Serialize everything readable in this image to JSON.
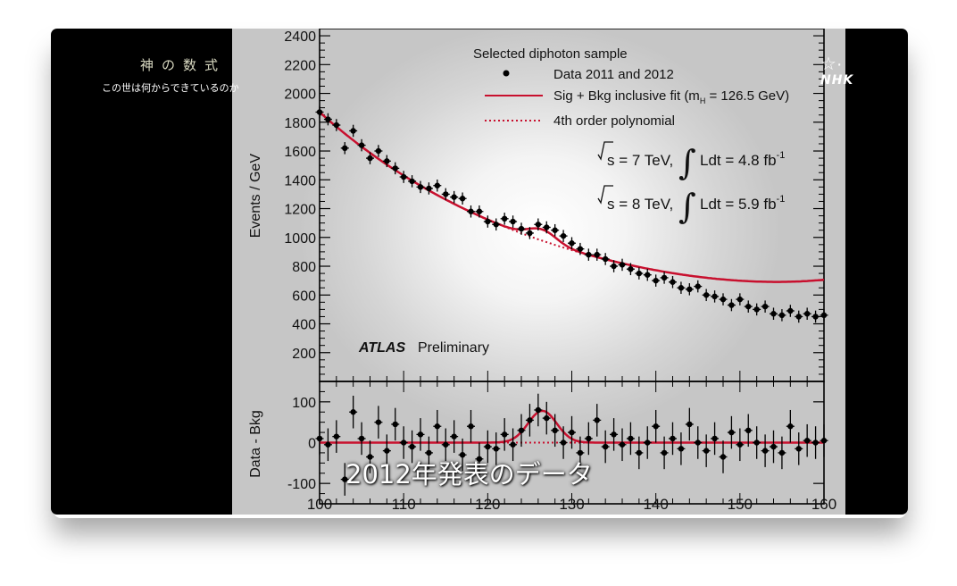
{
  "overlay": {
    "program_title": "神の数式",
    "program_subtitle": "この世は何からできているのか",
    "broadcaster": "NHK",
    "subtitle": "2012年発表のデータ"
  },
  "chart_data": [
    {
      "type": "scatter",
      "ylabel": "Events / GeV",
      "ylim": [
        0,
        2450
      ],
      "xlim": [
        100,
        160
      ],
      "yticks": [
        200,
        400,
        600,
        800,
        1000,
        1200,
        1400,
        1600,
        1800,
        2000,
        2200,
        2400
      ],
      "legend": {
        "header": "Selected diphoton sample",
        "entries": [
          "Data 2011 and 2012",
          "Sig + Bkg inclusive fit (m",
          "4th order polynomial"
        ],
        "fit_mass_subscript": "H",
        "fit_mass_value": " = 126.5 GeV)",
        "placement": "top-right"
      },
      "annotations": {
        "line1_energy": "s = 7 TeV,",
        "line1_lumi": "Ldt = 4.8 fb",
        "line2_energy": "s = 8 TeV,",
        "line2_lumi": "Ldt = 5.9 fb",
        "lumi_exponent": "-1",
        "experiment": "ATLAS",
        "status": "Preliminary"
      },
      "series": [
        {
          "name": "Data 2011 and 2012",
          "x": [
            100,
            101,
            102,
            103,
            104,
            105,
            106,
            107,
            108,
            109,
            110,
            111,
            112,
            113,
            114,
            115,
            116,
            117,
            118,
            119,
            120,
            121,
            122,
            123,
            124,
            125,
            126,
            127,
            128,
            129,
            130,
            131,
            132,
            133,
            134,
            135,
            136,
            137,
            138,
            139,
            140,
            141,
            142,
            143,
            144,
            145,
            146,
            147,
            148,
            149,
            150,
            151,
            152,
            153,
            154,
            155,
            156,
            157,
            158,
            159,
            160
          ],
          "y": [
            1870,
            1820,
            1780,
            1620,
            1740,
            1640,
            1550,
            1600,
            1530,
            1480,
            1420,
            1390,
            1350,
            1340,
            1360,
            1300,
            1280,
            1270,
            1180,
            1180,
            1110,
            1090,
            1130,
            1110,
            1060,
            1030,
            1090,
            1070,
            1050,
            1010,
            960,
            920,
            880,
            880,
            850,
            800,
            810,
            780,
            750,
            740,
            700,
            720,
            690,
            650,
            640,
            660,
            600,
            590,
            570,
            530,
            570,
            520,
            500,
            520,
            470,
            460,
            490,
            450,
            470,
            450,
            460
          ],
          "yerr": 42
        }
      ],
      "fit_curves": [
        {
          "name": "Sig + Bkg inclusive fit",
          "style": "solid",
          "color": "#c8102e"
        },
        {
          "name": "4th order polynomial",
          "style": "dotted",
          "color": "#c8102e"
        }
      ],
      "fit": {
        "bkg_poly": [
          1870,
          -52.5,
          0.95,
          -0.011,
          7.27e-05
        ],
        "signal_amplitude": 78,
        "signal_mass": 126.5,
        "signal_width": 1.7
      }
    },
    {
      "type": "scatter",
      "ylabel": "Data - Bkg",
      "ylim": [
        -150,
        150
      ],
      "xlim": [
        100,
        160
      ],
      "yticks": [
        -100,
        0,
        100
      ],
      "xticks": [
        100,
        110,
        120,
        130,
        140,
        150,
        160
      ],
      "series": [
        {
          "name": "Data - Bkg",
          "x": [
            100,
            101,
            102,
            103,
            104,
            105,
            106,
            107,
            108,
            109,
            110,
            111,
            112,
            113,
            114,
            115,
            116,
            117,
            118,
            119,
            120,
            121,
            122,
            123,
            124,
            125,
            126,
            127,
            128,
            129,
            130,
            131,
            132,
            133,
            134,
            135,
            136,
            137,
            138,
            139,
            140,
            141,
            142,
            143,
            144,
            145,
            146,
            147,
            148,
            149,
            150,
            151,
            152,
            153,
            154,
            155,
            156,
            157,
            158,
            159,
            160
          ],
          "y": [
            10,
            -5,
            15,
            -90,
            75,
            10,
            -35,
            50,
            -20,
            45,
            0,
            -10,
            20,
            -25,
            40,
            -5,
            15,
            -30,
            40,
            -40,
            -10,
            -15,
            20,
            -5,
            30,
            55,
            80,
            60,
            30,
            0,
            25,
            -25,
            10,
            55,
            -10,
            20,
            -5,
            10,
            -25,
            0,
            40,
            -25,
            10,
            -15,
            45,
            0,
            -20,
            10,
            -35,
            25,
            -5,
            30,
            0,
            -20,
            -10,
            -25,
            40,
            -15,
            5,
            0,
            5
          ],
          "yerr": 40
        }
      ]
    }
  ]
}
